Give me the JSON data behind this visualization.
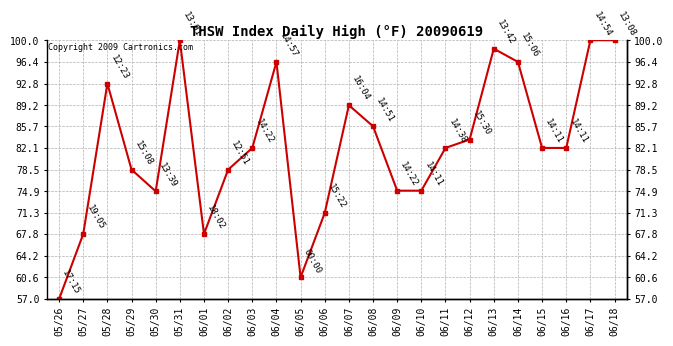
{
  "title": "THSW Index Daily High (°F) 20090619",
  "copyright": "Copyright 2009 Cartronics.com",
  "x_labels": [
    "05/26",
    "05/27",
    "05/28",
    "05/29",
    "05/30",
    "05/31",
    "06/01",
    "06/02",
    "06/03",
    "06/04",
    "06/05",
    "06/06",
    "06/07",
    "06/08",
    "06/09",
    "06/10",
    "06/11",
    "06/12",
    "06/13",
    "06/14",
    "06/15",
    "06/16",
    "06/17",
    "06/18"
  ],
  "y_values": [
    57.0,
    67.8,
    92.8,
    78.5,
    74.9,
    100.0,
    67.8,
    78.5,
    82.1,
    96.4,
    60.6,
    71.3,
    89.2,
    85.7,
    75.0,
    75.0,
    82.1,
    83.5,
    98.6,
    96.4,
    82.1,
    82.1,
    100.0,
    100.0
  ],
  "time_labels": [
    "17:15",
    "19:05",
    "12:23",
    "15:08",
    "13:39",
    "13:01",
    "18:02",
    "12:51",
    "14:22",
    "14:57",
    "00:00",
    "15:22",
    "16:04",
    "14:51",
    "14:22",
    "14:11",
    "14:38",
    "15:30",
    "13:42",
    "15:06",
    "14:11",
    "14:11",
    "14:54",
    "13:08"
  ],
  "ylim": [
    57.0,
    100.0
  ],
  "yticks": [
    57.0,
    60.6,
    64.2,
    67.8,
    71.3,
    74.9,
    78.5,
    82.1,
    85.7,
    89.2,
    92.8,
    96.4,
    100.0
  ],
  "line_color": "#cc0000",
  "marker_color": "#cc0000",
  "bg_color": "#ffffff",
  "grid_color": "#b0b0b0",
  "title_fontsize": 10,
  "label_fontsize": 6.5,
  "tick_fontsize": 7,
  "copyright_fontsize": 6
}
